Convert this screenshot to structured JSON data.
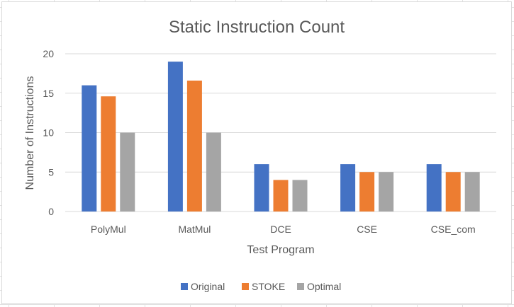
{
  "chart_data": {
    "type": "bar",
    "title": "Static Instruction Count",
    "xlabel": "Test Program",
    "ylabel": "Number of Instructions",
    "categories": [
      "PolyMul",
      "MatMul",
      "DCE",
      "CSE",
      "CSE_com"
    ],
    "ylim": [
      0,
      20
    ],
    "yticks": [
      0,
      5,
      10,
      15,
      20
    ],
    "grid": true,
    "legend_position": "bottom",
    "series": [
      {
        "name": "Original",
        "color": "#4472C4",
        "values": [
          16,
          19,
          6,
          6,
          6
        ]
      },
      {
        "name": "STOKE",
        "color": "#ED7D31",
        "values": [
          14.6,
          16.6,
          4,
          5,
          5
        ]
      },
      {
        "name": "Optimal",
        "color": "#A5A5A5",
        "values": [
          10,
          10,
          4,
          5,
          5
        ]
      }
    ]
  }
}
